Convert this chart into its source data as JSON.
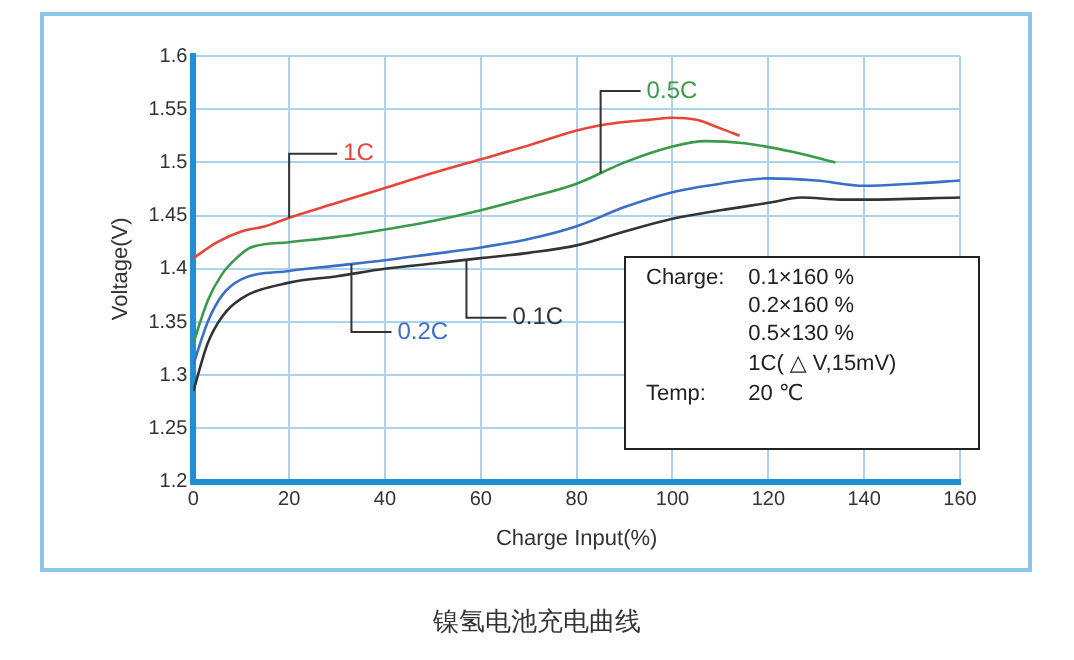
{
  "chart_data": {
    "type": "line",
    "xlabel": "Charge Input(%)",
    "ylabel": "Voltage(V)",
    "xlim": [
      0,
      160
    ],
    "xticks": [
      0,
      20,
      40,
      60,
      80,
      100,
      120,
      140,
      160
    ],
    "ylim": [
      1.2,
      1.6
    ],
    "yticks": [
      1.2,
      1.25,
      1.3,
      1.35,
      1.4,
      1.45,
      1.5,
      1.55,
      1.6
    ],
    "grid": true,
    "legend": false,
    "marker": "none",
    "line_style": "solid",
    "series": [
      {
        "name": "1C",
        "color": "#e8443a",
        "x": [
          0,
          5,
          10,
          15,
          20,
          30,
          40,
          50,
          60,
          70,
          80,
          85,
          90,
          95,
          100,
          105,
          110,
          114
        ],
        "values": [
          1.41,
          1.425,
          1.435,
          1.44,
          1.448,
          1.462,
          1.476,
          1.49,
          1.503,
          1.516,
          1.53,
          1.535,
          1.538,
          1.54,
          1.542,
          1.54,
          1.532,
          1.525
        ]
      },
      {
        "name": "0.5C",
        "color": "#3a9a4a",
        "x": [
          0,
          3,
          6,
          9,
          12,
          20,
          30,
          40,
          50,
          60,
          70,
          80,
          90,
          100,
          107,
          115,
          125,
          134
        ],
        "values": [
          1.33,
          1.37,
          1.395,
          1.41,
          1.42,
          1.425,
          1.43,
          1.437,
          1.445,
          1.455,
          1.467,
          1.48,
          1.5,
          1.515,
          1.52,
          1.518,
          1.51,
          1.5
        ]
      },
      {
        "name": "0.2C",
        "color": "#3a6fc8",
        "x": [
          0,
          3,
          6,
          10,
          20,
          30,
          40,
          50,
          60,
          70,
          80,
          90,
          100,
          110,
          120,
          130,
          140,
          150,
          160
        ],
        "values": [
          1.31,
          1.35,
          1.375,
          1.39,
          1.398,
          1.403,
          1.408,
          1.414,
          1.42,
          1.428,
          1.44,
          1.458,
          1.472,
          1.48,
          1.485,
          1.483,
          1.478,
          1.48,
          1.483
        ]
      },
      {
        "name": "0.1C",
        "color": "#333333",
        "x": [
          0,
          3,
          6,
          10,
          20,
          30,
          40,
          50,
          60,
          70,
          80,
          90,
          100,
          110,
          120,
          127,
          135,
          140,
          160
        ],
        "values": [
          1.285,
          1.33,
          1.355,
          1.372,
          1.387,
          1.393,
          1.4,
          1.405,
          1.41,
          1.415,
          1.422,
          1.435,
          1.447,
          1.455,
          1.462,
          1.467,
          1.465,
          1.465,
          1.467
        ]
      }
    ],
    "annotations": [
      "Charge:",
      "0.1×160 %",
      "0.2×160 %",
      "0.5×130 %",
      "1C( △ V,15mV)",
      "Temp:",
      "20 ℃",
      "镍氢电池充电曲线"
    ]
  }
}
